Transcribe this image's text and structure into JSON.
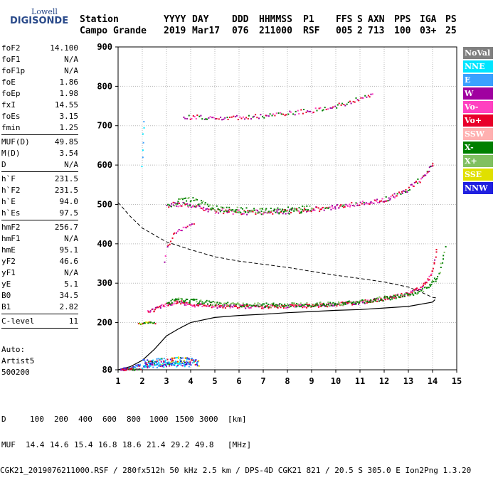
{
  "logo": {
    "line1": "Lowell",
    "line2": "DIGISONDE"
  },
  "header": {
    "labels": [
      "Station",
      "YYYY",
      "DAY",
      "DDD",
      "HHMMSS",
      "P1",
      "FFS",
      "S",
      "AXN",
      "PPS",
      "IGA",
      "PS"
    ],
    "values": [
      "Campo Grande",
      "2019",
      "Mar17",
      "076",
      "211000",
      "RSF",
      "005",
      "2",
      "713",
      "100",
      "03+",
      "25"
    ]
  },
  "params": {
    "group1": [
      {
        "name": "foF2",
        "value": "14.100"
      },
      {
        "name": "foF1",
        "value": "N/A"
      },
      {
        "name": "foF1p",
        "value": "N/A"
      },
      {
        "name": "foE",
        "value": "1.86"
      },
      {
        "name": "foEp",
        "value": "1.98"
      },
      {
        "name": "fxI",
        "value": "14.55"
      },
      {
        "name": "foEs",
        "value": "3.15"
      },
      {
        "name": "fmin",
        "value": "1.25"
      }
    ],
    "group2": [
      {
        "name": "MUF(D)",
        "value": "49.85"
      },
      {
        "name": "M(D)",
        "value": "3.54"
      },
      {
        "name": "D",
        "value": "N/A"
      }
    ],
    "group3": [
      {
        "name": "h`F",
        "value": "231.5"
      },
      {
        "name": "h`F2",
        "value": "231.5"
      },
      {
        "name": "h`E",
        "value": "94.0"
      },
      {
        "name": "h`Es",
        "value": "97.5"
      }
    ],
    "group4": [
      {
        "name": "hmF2",
        "value": "256.7"
      },
      {
        "name": "hmF1",
        "value": "N/A"
      },
      {
        "name": "hmE",
        "value": "95.1"
      },
      {
        "name": "yF2",
        "value": "46.6"
      },
      {
        "name": "yF1",
        "value": "N/A"
      },
      {
        "name": "yE",
        "value": "5.1"
      },
      {
        "name": "B0",
        "value": "34.5"
      },
      {
        "name": "B1",
        "value": "2.82"
      }
    ],
    "group5": [
      {
        "name": "C-level",
        "value": "11"
      }
    ]
  },
  "auto": {
    "line1": "Auto:",
    "line2": "Artist5",
    "line3": "500200"
  },
  "legend": [
    {
      "label": "NoVal",
      "color": "#808080"
    },
    {
      "label": "NNE",
      "color": "#00e5ff"
    },
    {
      "label": "E",
      "color": "#3aa0ff"
    },
    {
      "label": "W",
      "color": "#a000a0"
    },
    {
      "label": "Vo-",
      "color": "#ff40c0"
    },
    {
      "label": "Vo+",
      "color": "#e8002a"
    },
    {
      "label": "SSW",
      "color": "#ffb0b0"
    },
    {
      "label": "X-",
      "color": "#008000"
    },
    {
      "label": "X+",
      "color": "#80c060"
    },
    {
      "label": "SSE",
      "color": "#e0e000"
    },
    {
      "label": "NNW",
      "color": "#2020e0"
    }
  ],
  "bottom": {
    "d_label": "D",
    "d_values": [
      "100",
      "200",
      "400",
      "600",
      "800",
      "1000",
      "1500",
      "3000"
    ],
    "d_unit": "[km]",
    "muf_label": "MUF",
    "muf_values": [
      "14.4",
      "14.6",
      "15.4",
      "16.8",
      "18.6",
      "21.4",
      "29.2",
      "49.8"
    ],
    "muf_unit": "[MHz]",
    "footer": "CGK21_2019076211000.RSF / 280fx512h 50 kHz 2.5 km / DPS-4D CGK21 821 / 20.5 S 305.0 E Ion2Png 1.3.20"
  },
  "chart_data": {
    "type": "scatter",
    "xlim": [
      1,
      15
    ],
    "ylim": [
      80,
      900
    ],
    "x_ticks": [
      "1",
      "2",
      "3",
      "4",
      "5",
      "6",
      "7",
      "8",
      "9",
      "10",
      "11",
      "12",
      "13",
      "14",
      "15"
    ],
    "y_ticks": [
      "80",
      "200",
      "300",
      "400",
      "500",
      "600",
      "700",
      "800",
      "900"
    ],
    "grid": true,
    "legend_position": "right",
    "profile_curve": [
      [
        1.0,
        80
      ],
      [
        1.5,
        88
      ],
      [
        2.0,
        104
      ],
      [
        2.5,
        132
      ],
      [
        3.0,
        166
      ],
      [
        3.5,
        184
      ],
      [
        4.0,
        200
      ],
      [
        5.0,
        213
      ],
      [
        6.0,
        218
      ],
      [
        7.0,
        221
      ],
      [
        8.0,
        225
      ],
      [
        9.0,
        228
      ],
      [
        10.0,
        231
      ],
      [
        11.0,
        233
      ],
      [
        12.0,
        237
      ],
      [
        13.0,
        241
      ],
      [
        14.0,
        252
      ],
      [
        14.1,
        258
      ]
    ],
    "dashed_curve": [
      [
        1.0,
        505
      ],
      [
        1.5,
        470
      ],
      [
        2.0,
        440
      ],
      [
        3.0,
        405
      ],
      [
        4.0,
        385
      ],
      [
        5.0,
        367
      ],
      [
        6.0,
        356
      ],
      [
        7.0,
        348
      ],
      [
        8.0,
        340
      ],
      [
        9.0,
        330
      ],
      [
        10.0,
        320
      ],
      [
        11.0,
        312
      ],
      [
        12.0,
        303
      ],
      [
        13.0,
        290
      ],
      [
        13.5,
        278
      ],
      [
        14.0,
        264
      ],
      [
        14.2,
        262
      ]
    ],
    "trace_F1_O": [
      [
        2.2,
        228
      ],
      [
        2.6,
        238
      ],
      [
        3.0,
        248
      ],
      [
        3.3,
        252
      ],
      [
        3.6,
        252
      ],
      [
        4.0,
        247
      ],
      [
        4.5,
        244
      ],
      [
        5.0,
        243
      ],
      [
        6.0,
        242
      ],
      [
        7.0,
        242
      ],
      [
        8.0,
        243
      ],
      [
        9.0,
        244
      ],
      [
        10.0,
        248
      ],
      [
        11.0,
        253
      ],
      [
        12.0,
        262
      ],
      [
        13.0,
        275
      ],
      [
        13.5,
        290
      ],
      [
        13.8,
        310
      ],
      [
        14.0,
        340
      ],
      [
        14.1,
        370
      ],
      [
        14.15,
        385
      ]
    ],
    "trace_F1_X": [
      [
        3.0,
        252
      ],
      [
        3.5,
        260
      ],
      [
        4.0,
        256
      ],
      [
        5.0,
        250
      ],
      [
        6.0,
        247
      ],
      [
        7.0,
        246
      ],
      [
        8.0,
        246
      ],
      [
        9.0,
        247
      ],
      [
        10.0,
        250
      ],
      [
        11.0,
        254
      ],
      [
        12.0,
        263
      ],
      [
        13.0,
        272
      ],
      [
        13.8,
        290
      ],
      [
        14.2,
        320
      ],
      [
        14.4,
        360
      ],
      [
        14.5,
        395
      ]
    ],
    "trace_F2_O": [
      [
        3.0,
        495
      ],
      [
        3.2,
        500
      ],
      [
        3.5,
        502
      ],
      [
        4.0,
        500
      ],
      [
        4.5,
        492
      ],
      [
        5.0,
        486
      ],
      [
        6.0,
        482
      ],
      [
        7.0,
        482
      ],
      [
        8.0,
        484
      ],
      [
        9.0,
        488
      ],
      [
        10.0,
        495
      ],
      [
        11.0,
        503
      ],
      [
        12.0,
        515
      ],
      [
        12.5,
        525
      ],
      [
        13.0,
        542
      ],
      [
        13.5,
        565
      ],
      [
        13.8,
        585
      ],
      [
        14.0,
        605
      ]
    ],
    "trace_F2_X": [
      [
        3.3,
        505
      ],
      [
        3.8,
        515
      ],
      [
        4.2,
        510
      ],
      [
        4.6,
        500
      ],
      [
        5.0,
        492
      ],
      [
        6.0,
        487
      ],
      [
        7.0,
        486
      ],
      [
        8.0,
        488
      ],
      [
        9.0,
        492
      ]
    ],
    "trace_F3": [
      [
        3.7,
        723
      ],
      [
        4.2,
        724
      ],
      [
        5.0,
        722
      ],
      [
        6.0,
        722
      ],
      [
        7.0,
        726
      ],
      [
        8.0,
        733
      ],
      [
        9.0,
        740
      ],
      [
        10.0,
        752
      ],
      [
        10.5,
        760
      ],
      [
        11.0,
        772
      ],
      [
        11.5,
        782
      ]
    ],
    "trace_E": [
      [
        1.1,
        83
      ],
      [
        1.3,
        85
      ],
      [
        1.5,
        87
      ],
      [
        1.7,
        90
      ],
      [
        1.9,
        95
      ]
    ],
    "trace_Es": [
      [
        2.0,
        98
      ],
      [
        2.5,
        100
      ],
      [
        3.0,
        103
      ],
      [
        3.5,
        105
      ],
      [
        4.0,
        103
      ],
      [
        4.3,
        100
      ]
    ],
    "trace_Es_high": [
      [
        1.1,
        82
      ],
      [
        1.3,
        82
      ],
      [
        1.5,
        83
      ],
      [
        1.7,
        82
      ],
      [
        1.9,
        83
      ]
    ],
    "trace_Es_mid": [
      [
        1.8,
        198
      ],
      [
        2.0,
        200
      ],
      [
        2.2,
        202
      ],
      [
        2.5,
        200
      ]
    ],
    "trace_spread_low": [
      [
        2.0,
        92
      ],
      [
        2.4,
        94
      ],
      [
        2.8,
        95
      ],
      [
        3.2,
        96
      ],
      [
        3.6,
        97
      ],
      [
        4.0,
        96
      ]
    ],
    "trace_vertical_2": [
      [
        1.96,
        600
      ],
      [
        2.0,
        640
      ],
      [
        2.02,
        680
      ],
      [
        2.04,
        712
      ]
    ],
    "trace_rise": [
      [
        2.9,
        350
      ],
      [
        3.0,
        390
      ],
      [
        3.2,
        420
      ],
      [
        3.5,
        435
      ],
      [
        3.8,
        445
      ],
      [
        4.1,
        450
      ]
    ]
  }
}
